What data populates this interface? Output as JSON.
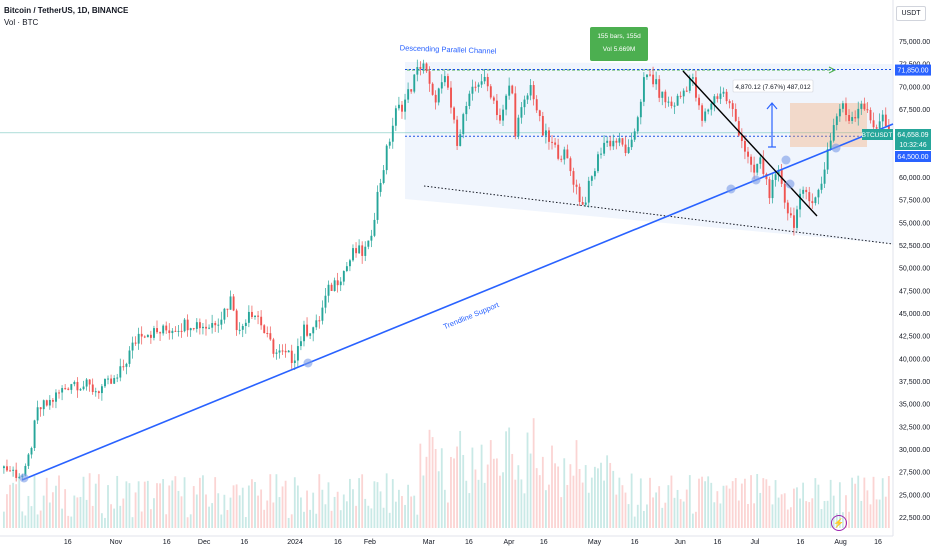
{
  "header": {
    "symbol": "Bitcoin / TetherUS, 1D, BINANCE",
    "volume": "Vol · BTC"
  },
  "axis_unit": "USDT",
  "chart_data": {
    "type": "candlestick",
    "x_tick_labels": [
      "16",
      "Nov",
      "16",
      "Dec",
      "16",
      "2024",
      "16",
      "Feb",
      "Mar",
      "16",
      "Apr",
      "16",
      "May",
      "16",
      "Jun",
      "16",
      "Jul",
      "16",
      "Aug",
      "16"
    ],
    "y_tick_labels": [
      "22,500.00",
      "25,000.00",
      "27,500.00",
      "30,000.00",
      "32,500.00",
      "35,000.00",
      "37,500.00",
      "40,000.00",
      "42,500.00",
      "45,000.00",
      "47,500.00",
      "50,000.00",
      "52,500.00",
      "55,000.00",
      "57,500.00",
      "60,000.00",
      "62,500.00",
      "65,000.00",
      "67,500.00",
      "70,000.00",
      "72,500.00",
      "75,000.00"
    ],
    "ylim": [
      21500,
      77000
    ],
    "price_labels": {
      "level_high": {
        "text": "71,850.00",
        "value": 71850
      },
      "current": {
        "symbol": "BTCUSDT",
        "price": "64,658.09",
        "countdown": "10:32:46",
        "value": 64658
      },
      "level_support": {
        "text": "64,500.00",
        "value": 64500
      }
    },
    "annotations": {
      "channel": "Descending Parallel Channel",
      "trendline": "Trendline Support",
      "range_line1": "155 bars, 155d",
      "range_line2": "Vol 5.669M",
      "measure": "4,870.12 (7.67%) 487,012"
    },
    "price_path": [
      [
        0,
        28000
      ],
      [
        6,
        26900
      ],
      [
        7,
        28500
      ],
      [
        10,
        34300
      ],
      [
        13,
        35000
      ],
      [
        20,
        37500
      ],
      [
        27,
        36500
      ],
      [
        33,
        37500
      ],
      [
        40,
        43000
      ],
      [
        45,
        42800
      ],
      [
        55,
        44000
      ],
      [
        60,
        43500
      ],
      [
        64,
        44800
      ],
      [
        67,
        46800
      ],
      [
        69,
        42500
      ],
      [
        72,
        45500
      ],
      [
        75,
        44500
      ],
      [
        77,
        42300
      ],
      [
        80,
        40600
      ],
      [
        85,
        40000
      ],
      [
        88,
        43000
      ],
      [
        92,
        43600
      ],
      [
        95,
        47200
      ],
      [
        97,
        48300
      ],
      [
        100,
        49700
      ],
      [
        103,
        51800
      ],
      [
        105,
        51600
      ],
      [
        107,
        52100
      ],
      [
        110,
        58500
      ],
      [
        112,
        62000
      ],
      [
        115,
        67000
      ],
      [
        118,
        68500
      ],
      [
        123,
        73000
      ],
      [
        126,
        68400
      ],
      [
        130,
        70700
      ],
      [
        133,
        64000
      ],
      [
        136,
        68000
      ],
      [
        140,
        71000
      ],
      [
        143,
        69500
      ],
      [
        146,
        66000
      ],
      [
        149,
        71000
      ],
      [
        150,
        65000
      ],
      [
        155,
        70200
      ],
      [
        158,
        65000
      ],
      [
        162,
        63000
      ],
      [
        165,
        62300
      ],
      [
        170,
        56800
      ],
      [
        172,
        59000
      ],
      [
        176,
        63800
      ],
      [
        180,
        64000
      ],
      [
        184,
        62500
      ],
      [
        186,
        66500
      ],
      [
        188,
        70500
      ],
      [
        190,
        71200
      ],
      [
        193,
        69000
      ],
      [
        196,
        67800
      ],
      [
        199,
        69000
      ],
      [
        202,
        71200
      ],
      [
        205,
        66000
      ],
      [
        208,
        68500
      ],
      [
        211,
        69500
      ],
      [
        214,
        67300
      ],
      [
        217,
        64000
      ],
      [
        220,
        60000
      ],
      [
        222,
        62000
      ],
      [
        225,
        58300
      ],
      [
        228,
        60500
      ],
      [
        230,
        56500
      ],
      [
        232,
        55000
      ],
      [
        234,
        57500
      ],
      [
        236,
        58500
      ],
      [
        238,
        57200
      ],
      [
        240,
        59000
      ],
      [
        242,
        63000
      ],
      [
        244,
        66000
      ],
      [
        246,
        68000
      ],
      [
        248,
        66500
      ],
      [
        250,
        67000
      ],
      [
        252,
        68500
      ],
      [
        254,
        66500
      ],
      [
        256,
        65500
      ],
      [
        258,
        66800
      ],
      [
        260,
        64600
      ]
    ]
  }
}
